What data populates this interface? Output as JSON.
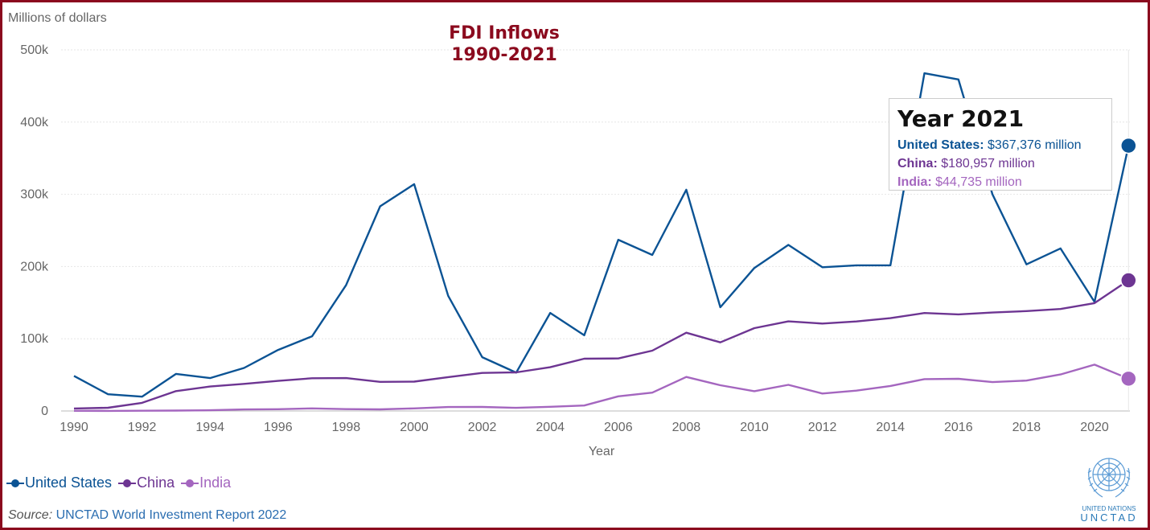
{
  "chart_data": {
    "type": "line",
    "title": [
      "FDI Inflows",
      "1990-2021"
    ],
    "ylabel": "Millions of dollars",
    "xlabel": "Year",
    "ylim": [
      0,
      500000
    ],
    "y_ticks": [
      0,
      100000,
      200000,
      300000,
      400000,
      500000
    ],
    "y_tick_labels": [
      "0",
      "100k",
      "200k",
      "300k",
      "400k",
      "500k"
    ],
    "x_ticks": [
      1990,
      1992,
      1994,
      1996,
      1998,
      2000,
      2002,
      2004,
      2006,
      2008,
      2010,
      2012,
      2014,
      2016,
      2018,
      2020
    ],
    "x": [
      1990,
      1991,
      1992,
      1993,
      1994,
      1995,
      1996,
      1997,
      1998,
      1999,
      2000,
      2001,
      2002,
      2003,
      2004,
      2005,
      2006,
      2007,
      2008,
      2009,
      2010,
      2011,
      2012,
      2013,
      2014,
      2015,
      2016,
      2017,
      2018,
      2019,
      2020,
      2021
    ],
    "series": [
      {
        "name": "United States",
        "color": "#0b5394",
        "values": [
          48500,
          23200,
          19800,
          51300,
          45600,
          59600,
          84500,
          103400,
          174400,
          283400,
          314000,
          159500,
          74500,
          53100,
          135800,
          104800,
          237100,
          216000,
          306400,
          143600,
          198000,
          229900,
          199000,
          201700,
          201700,
          467600,
          459000,
          300000,
          203000,
          225000,
          151000,
          367376
        ]
      },
      {
        "name": "China",
        "color": "#6d3592",
        "values": [
          3500,
          4400,
          11200,
          27500,
          33800,
          37500,
          41700,
          45300,
          45500,
          40300,
          40700,
          46900,
          52700,
          53500,
          60600,
          72400,
          72700,
          83500,
          108300,
          95000,
          114700,
          124000,
          121100,
          123900,
          128500,
          135600,
          133700,
          136300,
          138300,
          141200,
          149300,
          180957
        ]
      },
      {
        "name": "India",
        "color": "#a466bf",
        "values": [
          200,
          100,
          300,
          600,
          1000,
          2100,
          2400,
          3600,
          2600,
          2200,
          3600,
          5500,
          5600,
          4300,
          5800,
          7600,
          20300,
          25400,
          47100,
          35600,
          27400,
          36200,
          24200,
          28200,
          34600,
          44100,
          44500,
          40000,
          42100,
          50600,
          64100,
          44735
        ]
      }
    ],
    "highlight": {
      "year_label": "Year 2021",
      "rows": [
        {
          "country": "United States:",
          "value": "$367,376 million",
          "color": "#0b5394"
        },
        {
          "country": "China:",
          "value": "$180,957 million",
          "color": "#6d3592"
        },
        {
          "country": "India:",
          "value": "$44,735 million",
          "color": "#a466bf"
        }
      ]
    }
  },
  "legend": [
    {
      "label": "United States",
      "color": "#0b5394"
    },
    {
      "label": "China",
      "color": "#6d3592"
    },
    {
      "label": "India",
      "color": "#a466bf"
    }
  ],
  "source": {
    "prefix": "Source:",
    "text": "UNCTAD World Investment Report 2022"
  },
  "logo": {
    "line1": "UNITED NATIONS",
    "line2": "UNCTAD"
  }
}
